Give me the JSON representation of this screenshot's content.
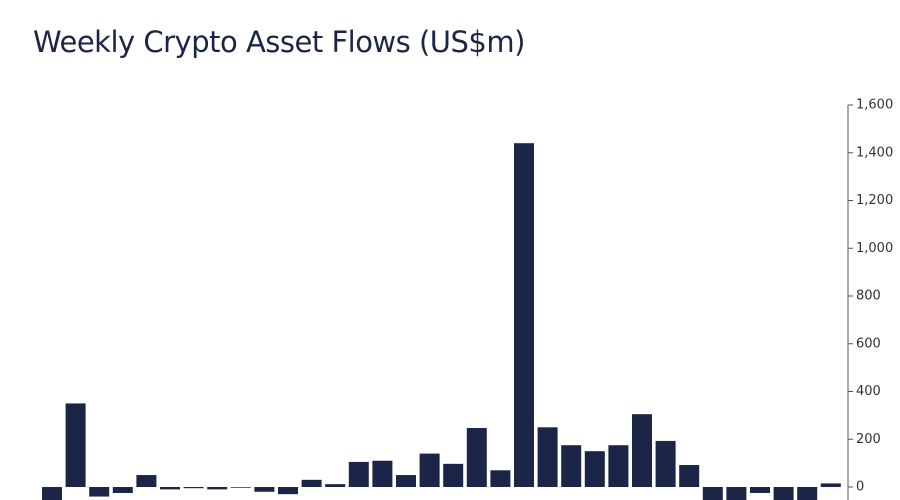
{
  "chart_data": {
    "type": "bar",
    "title": "Weekly Crypto Asset Flows (US$m)",
    "categories": [
      null,
      null,
      null,
      null,
      null,
      null,
      null,
      null,
      null,
      null,
      null,
      null,
      null,
      null,
      null,
      null,
      null,
      null,
      null,
      null,
      null,
      null,
      null,
      null,
      null,
      null,
      null,
      null,
      null,
      null,
      null,
      null,
      null,
      null
    ],
    "values": [
      -60,
      350,
      -40,
      -25,
      50,
      -10,
      -5,
      -10,
      -3,
      -20,
      -30,
      30,
      12,
      105,
      110,
      50,
      140,
      97,
      247,
      70,
      1440,
      250,
      175,
      150,
      175,
      305,
      193,
      92,
      -60,
      -60,
      -25,
      -60,
      -60,
      15
    ],
    "color": "#1b2547",
    "ylim": [
      -200,
      1600
    ],
    "yticks": [
      0,
      200,
      400,
      600,
      800,
      {
        "value": 1000,
        "label": "1,000"
      },
      {
        "value": 1200,
        "label": "1,200"
      },
      {
        "value": 1400,
        "label": "1,400"
      },
      {
        "value": 1600,
        "label": "1,600"
      }
    ],
    "grid": false,
    "y_axis_side": "right"
  }
}
